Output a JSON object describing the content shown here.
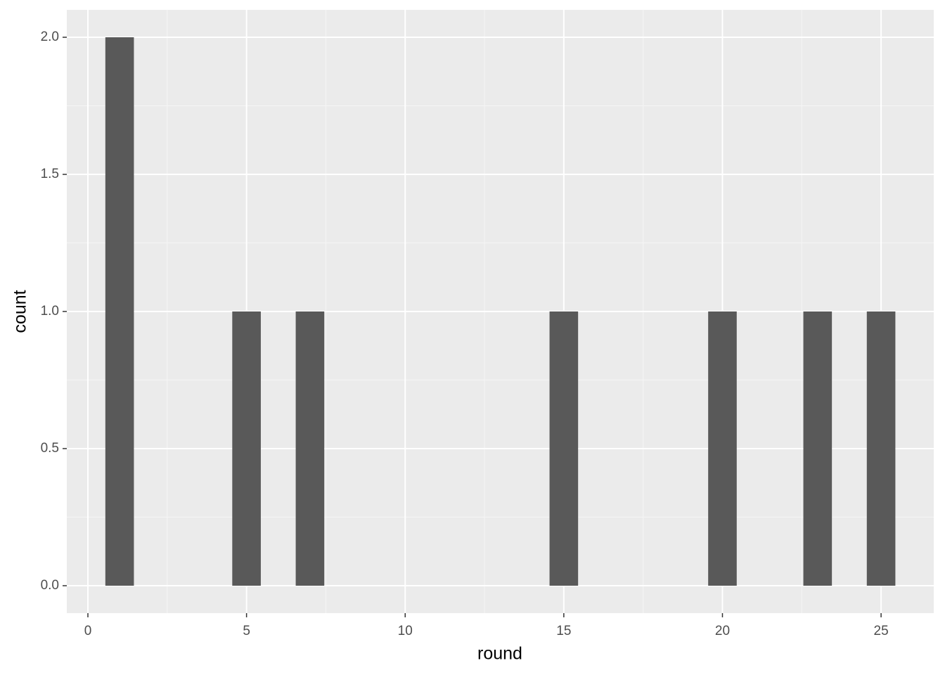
{
  "chart_data": {
    "type": "histogram",
    "x_label": "round",
    "y_label": "count",
    "bins": [
      0.55,
      1.45,
      4.55,
      5.45,
      6.55,
      7.45,
      14.55,
      15.45,
      19.55,
      20.45,
      22.55,
      23.45,
      24.55,
      25.45
    ],
    "values": [
      2,
      0,
      1,
      0,
      1,
      0,
      1,
      0,
      1,
      0,
      1,
      0,
      1
    ],
    "color": "#595959",
    "xlim": [
      -0.665,
      26.66
    ],
    "ylim": [
      -0.1,
      2.1
    ],
    "xticks": [
      0,
      5,
      10,
      15,
      20,
      25
    ],
    "yticks": [
      {
        "value": 0,
        "label": "0.0"
      },
      {
        "value": 0.5,
        "label": "0.5"
      },
      {
        "value": 1,
        "label": "1.0"
      },
      {
        "value": 1.5,
        "label": "1.5"
      },
      {
        "value": 2,
        "label": "2.0"
      }
    ],
    "grid": true
  }
}
